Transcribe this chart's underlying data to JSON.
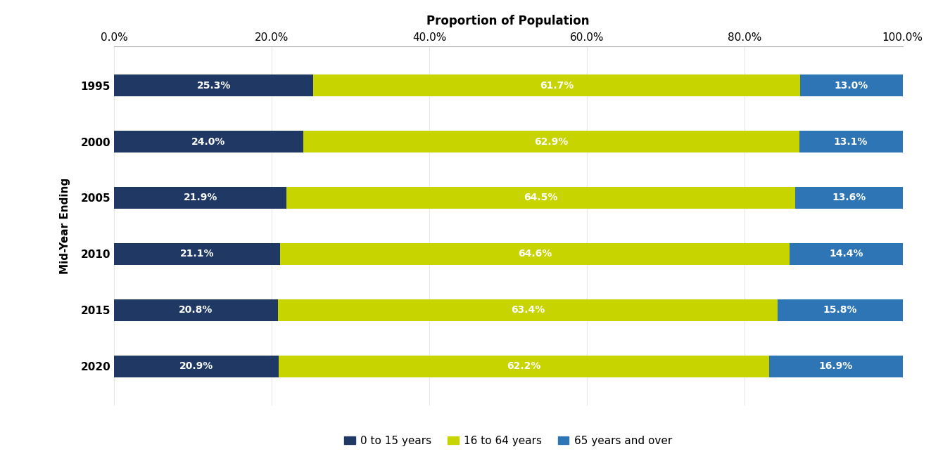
{
  "years": [
    "1995",
    "2000",
    "2005",
    "2010",
    "2015",
    "2020"
  ],
  "under16": [
    25.3,
    24.0,
    21.9,
    21.1,
    20.8,
    20.9
  ],
  "working": [
    61.7,
    62.9,
    64.5,
    64.6,
    63.4,
    62.2
  ],
  "over65": [
    13.0,
    13.1,
    13.6,
    14.4,
    15.8,
    16.9
  ],
  "color_under16": "#1f3864",
  "color_working": "#c8d400",
  "color_over65": "#2e75b6",
  "xlabel": "Proportion of Population",
  "ylabel": "Mid-Year Ending",
  "legend_labels": [
    "0 to 15 years",
    "16 to 64 years",
    "65 years and over"
  ],
  "text_color": "#ffffff",
  "bar_height": 0.38,
  "xlim": [
    0,
    100
  ],
  "xticks": [
    0,
    20,
    40,
    60,
    80,
    100
  ],
  "xtick_labels": [
    "0.0%",
    "20.0%",
    "40.0%",
    "60.0%",
    "80.0%",
    "100.0%"
  ],
  "xlabel_fontsize": 12,
  "ylabel_fontsize": 11,
  "tick_fontsize": 11,
  "legend_fontsize": 11,
  "bar_label_fontsize": 10,
  "background_color": "#ffffff"
}
